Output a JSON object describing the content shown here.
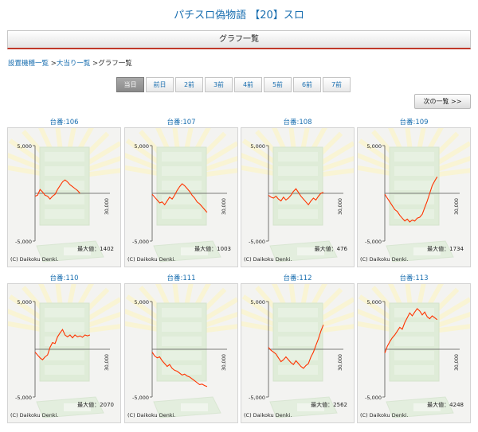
{
  "page": {
    "hall_title": "パチスロ偽物語 【20】スロ",
    "header_title": "グラフ一覧"
  },
  "breadcrumb": {
    "items": [
      "設置機種一覧",
      "大当り一覧",
      "グラフ一覧"
    ],
    "separator": " >"
  },
  "day_tabs": [
    "当日",
    "前日",
    "2前",
    "3前",
    "4前",
    "5前",
    "6前",
    "7前"
  ],
  "active_day_tab": 0,
  "next_label": "次の一覧 >>",
  "graph_labels": {
    "y_max": "5,000",
    "y_min": "-5,000",
    "x_max": "30,000",
    "max_value_prefix": "最大値：",
    "copyright": "(C) Daikoku Denki."
  },
  "colors": {
    "accent_link": "#1a6fb0",
    "header_rule": "#c0392b",
    "graph_line": "#ff3300",
    "active_tab": "#999999"
  },
  "machines": [
    {
      "label": "台番:106",
      "max_value": "1402",
      "series": [
        [
          0,
          -300
        ],
        [
          1000,
          -200
        ],
        [
          2000,
          400
        ],
        [
          3000,
          150
        ],
        [
          4000,
          -200
        ],
        [
          5000,
          -300
        ],
        [
          6000,
          -600
        ],
        [
          7000,
          -300
        ],
        [
          8000,
          -100
        ],
        [
          9000,
          400
        ],
        [
          10000,
          800
        ],
        [
          11000,
          1200
        ],
        [
          12000,
          1400
        ],
        [
          13000,
          1200
        ],
        [
          14000,
          900
        ],
        [
          15000,
          700
        ],
        [
          16000,
          500
        ],
        [
          17000,
          300
        ],
        [
          18000,
          0
        ]
      ]
    },
    {
      "label": "台番:107",
      "max_value": "1003",
      "series": [
        [
          0,
          -100
        ],
        [
          1000,
          -400
        ],
        [
          2000,
          -700
        ],
        [
          3000,
          -1000
        ],
        [
          4000,
          -900
        ],
        [
          5000,
          -1200
        ],
        [
          6000,
          -800
        ],
        [
          7000,
          -400
        ],
        [
          8000,
          -600
        ],
        [
          9000,
          -200
        ],
        [
          10000,
          300
        ],
        [
          11000,
          700
        ],
        [
          12000,
          1000
        ],
        [
          13000,
          800
        ],
        [
          14000,
          500
        ],
        [
          15000,
          200
        ],
        [
          16000,
          -200
        ],
        [
          17000,
          -500
        ],
        [
          18000,
          -900
        ],
        [
          19000,
          -1100
        ],
        [
          20000,
          -1400
        ],
        [
          21000,
          -1700
        ],
        [
          22000,
          -2000
        ]
      ]
    },
    {
      "label": "台番:108",
      "max_value": "476",
      "series": [
        [
          0,
          -200
        ],
        [
          1000,
          -400
        ],
        [
          2000,
          -500
        ],
        [
          3000,
          -300
        ],
        [
          4000,
          -600
        ],
        [
          5000,
          -800
        ],
        [
          6000,
          -400
        ],
        [
          7000,
          -700
        ],
        [
          8000,
          -500
        ],
        [
          9000,
          -200
        ],
        [
          10000,
          200
        ],
        [
          11000,
          476
        ],
        [
          12000,
          100
        ],
        [
          13000,
          -300
        ],
        [
          14000,
          -600
        ],
        [
          15000,
          -900
        ],
        [
          16000,
          -1200
        ],
        [
          17000,
          -800
        ],
        [
          18000,
          -500
        ],
        [
          19000,
          -700
        ],
        [
          20000,
          -300
        ],
        [
          21000,
          0
        ],
        [
          22000,
          100
        ]
      ]
    },
    {
      "label": "台番:109",
      "max_value": "1734",
      "series": [
        [
          0,
          -100
        ],
        [
          1000,
          -500
        ],
        [
          2000,
          -900
        ],
        [
          3000,
          -1300
        ],
        [
          4000,
          -1700
        ],
        [
          5000,
          -1900
        ],
        [
          6000,
          -2300
        ],
        [
          7000,
          -2600
        ],
        [
          8000,
          -2900
        ],
        [
          9000,
          -2700
        ],
        [
          10000,
          -3000
        ],
        [
          11000,
          -2800
        ],
        [
          12000,
          -2900
        ],
        [
          13000,
          -2600
        ],
        [
          14000,
          -2500
        ],
        [
          15000,
          -2200
        ],
        [
          16000,
          -1500
        ],
        [
          17000,
          -800
        ],
        [
          18000,
          0
        ],
        [
          19000,
          800
        ],
        [
          20000,
          1300
        ],
        [
          21000,
          1734
        ]
      ]
    },
    {
      "label": "台番:110",
      "max_value": "2070",
      "series": [
        [
          0,
          -300
        ],
        [
          1000,
          -600
        ],
        [
          2000,
          -900
        ],
        [
          3000,
          -1100
        ],
        [
          4000,
          -800
        ],
        [
          5000,
          -600
        ],
        [
          6000,
          200
        ],
        [
          7000,
          700
        ],
        [
          8000,
          600
        ],
        [
          9000,
          1300
        ],
        [
          10000,
          1700
        ],
        [
          11000,
          2070
        ],
        [
          12000,
          1500
        ],
        [
          13000,
          1300
        ],
        [
          14000,
          1500
        ],
        [
          15000,
          1200
        ],
        [
          16000,
          1500
        ],
        [
          17000,
          1300
        ],
        [
          18000,
          1400
        ],
        [
          19000,
          1250
        ],
        [
          20000,
          1500
        ],
        [
          21000,
          1400
        ],
        [
          22000,
          1500
        ]
      ]
    },
    {
      "label": "台番:111",
      "max_value": "",
      "series": [
        [
          0,
          -300
        ],
        [
          1000,
          -700
        ],
        [
          2000,
          -900
        ],
        [
          3000,
          -800
        ],
        [
          4000,
          -1200
        ],
        [
          5000,
          -1500
        ],
        [
          6000,
          -1800
        ],
        [
          7000,
          -1600
        ],
        [
          8000,
          -2000
        ],
        [
          9000,
          -2200
        ],
        [
          10000,
          -2300
        ],
        [
          11000,
          -2500
        ],
        [
          12000,
          -2700
        ],
        [
          13000,
          -2600
        ],
        [
          14000,
          -2800
        ],
        [
          15000,
          -2900
        ],
        [
          16000,
          -3100
        ],
        [
          17000,
          -3300
        ],
        [
          18000,
          -3500
        ],
        [
          19000,
          -3700
        ],
        [
          20000,
          -3650
        ],
        [
          21000,
          -3800
        ],
        [
          22000,
          -3900
        ]
      ]
    },
    {
      "label": "台番:112",
      "max_value": "2562",
      "series": [
        [
          0,
          200
        ],
        [
          1000,
          -100
        ],
        [
          2000,
          -300
        ],
        [
          3000,
          -500
        ],
        [
          4000,
          -900
        ],
        [
          5000,
          -1300
        ],
        [
          6000,
          -1100
        ],
        [
          7000,
          -800
        ],
        [
          8000,
          -1100
        ],
        [
          9000,
          -1400
        ],
        [
          10000,
          -1600
        ],
        [
          11000,
          -1200
        ],
        [
          12000,
          -1500
        ],
        [
          13000,
          -1800
        ],
        [
          14000,
          -2000
        ],
        [
          15000,
          -1700
        ],
        [
          16000,
          -1500
        ],
        [
          17000,
          -800
        ],
        [
          18000,
          -300
        ],
        [
          19000,
          400
        ],
        [
          20000,
          1100
        ],
        [
          21000,
          1900
        ],
        [
          22000,
          2562
        ]
      ]
    },
    {
      "label": "台番:113",
      "max_value": "4248",
      "series": [
        [
          0,
          -400
        ],
        [
          1000,
          300
        ],
        [
          2000,
          800
        ],
        [
          3000,
          1200
        ],
        [
          4000,
          1500
        ],
        [
          5000,
          1900
        ],
        [
          6000,
          2300
        ],
        [
          7000,
          2100
        ],
        [
          8000,
          2800
        ],
        [
          9000,
          3300
        ],
        [
          10000,
          3800
        ],
        [
          11000,
          3500
        ],
        [
          12000,
          3900
        ],
        [
          13000,
          4248
        ],
        [
          14000,
          4000
        ],
        [
          15000,
          3600
        ],
        [
          16000,
          3900
        ],
        [
          17000,
          3400
        ],
        [
          18000,
          3200
        ],
        [
          19000,
          3500
        ],
        [
          20000,
          3300
        ],
        [
          21000,
          3100
        ]
      ]
    }
  ]
}
